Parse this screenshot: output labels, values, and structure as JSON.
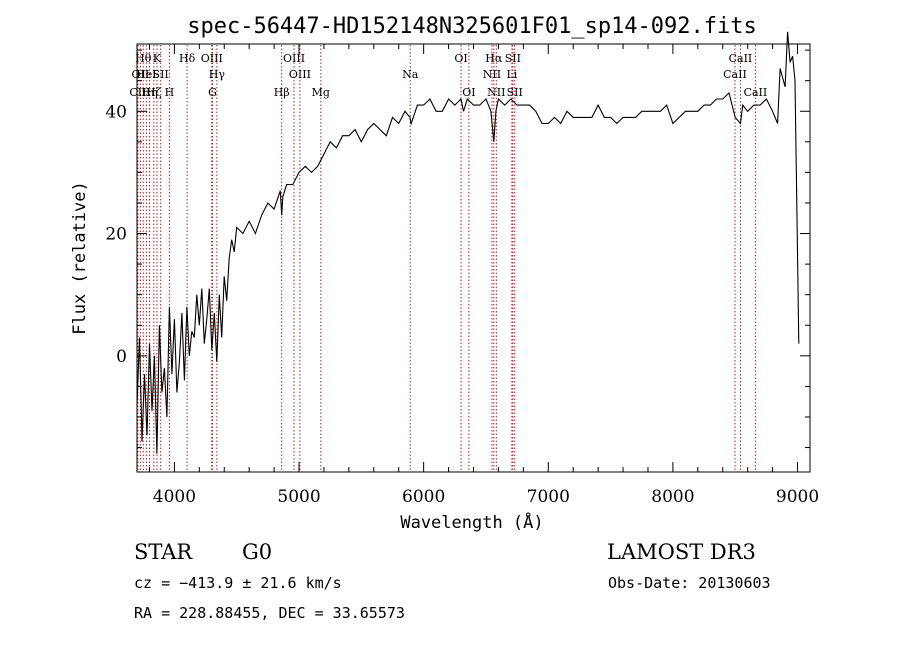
{
  "chart_data": {
    "type": "line",
    "title": "spec-56447-HD152148N325601F01_sp14-092.fits",
    "xlabel": "Wavelength (Å)",
    "ylabel": "Flux (relative)",
    "xlim": [
      3700,
      9100
    ],
    "ylim": [
      -19,
      51
    ],
    "x_ticks": [
      4000,
      5000,
      6000,
      7000,
      8000,
      9000
    ],
    "x_tick_labels": [
      "4000",
      "5000",
      "6000",
      "7000",
      "8000",
      "9000"
    ],
    "y_ticks": [
      0,
      20,
      40
    ],
    "y_tick_labels": [
      "0",
      "20",
      "40"
    ],
    "grid": false,
    "series": [
      {
        "color": "#000000",
        "x": [
          3700,
          3720,
          3740,
          3760,
          3780,
          3800,
          3820,
          3840,
          3860,
          3880,
          3900,
          3920,
          3940,
          3960,
          3980,
          4000,
          4020,
          4040,
          4060,
          4080,
          4100,
          4120,
          4140,
          4160,
          4180,
          4200,
          4220,
          4240,
          4260,
          4280,
          4300,
          4320,
          4340,
          4360,
          4380,
          4400,
          4420,
          4440,
          4460,
          4480,
          4500,
          4550,
          4600,
          4650,
          4700,
          4750,
          4800,
          4850,
          4861,
          4870,
          4900,
          4950,
          5000,
          5050,
          5100,
          5150,
          5200,
          5250,
          5300,
          5350,
          5400,
          5450,
          5500,
          5550,
          5600,
          5650,
          5700,
          5750,
          5800,
          5850,
          5890,
          5900,
          5950,
          6000,
          6050,
          6100,
          6150,
          6200,
          6250,
          6300,
          6320,
          6350,
          6400,
          6450,
          6500,
          6540,
          6563,
          6580,
          6600,
          6650,
          6700,
          6750,
          6800,
          6850,
          6900,
          6950,
          7000,
          7050,
          7100,
          7150,
          7200,
          7250,
          7300,
          7350,
          7400,
          7450,
          7500,
          7550,
          7600,
          7650,
          7700,
          7750,
          7800,
          7850,
          7900,
          7950,
          8000,
          8050,
          8100,
          8150,
          8200,
          8250,
          8300,
          8350,
          8400,
          8450,
          8500,
          8542,
          8560,
          8600,
          8650,
          8700,
          8750,
          8800,
          8840,
          8860,
          8900,
          8920,
          8940,
          8960,
          8980,
          9000,
          9010
        ],
        "values": [
          -8,
          3,
          -14,
          -3,
          -13,
          2,
          -9,
          0,
          -16,
          5,
          -6,
          -2,
          -10,
          8,
          -3,
          6,
          -6,
          -1,
          7,
          -4,
          8,
          0,
          4,
          3,
          10,
          5,
          11,
          2,
          6,
          11,
          1,
          7,
          -1,
          10,
          3,
          13,
          9,
          16,
          19,
          17,
          21,
          20,
          22,
          20,
          23,
          25,
          24,
          27,
          23,
          26,
          28,
          28,
          30,
          31,
          30,
          31,
          33,
          35,
          34,
          36,
          36,
          37,
          35,
          37,
          38,
          37,
          36,
          39,
          38,
          40,
          39,
          38,
          41,
          41,
          42,
          40,
          40,
          42,
          41,
          42,
          40,
          42,
          41,
          41,
          42,
          40,
          35,
          40,
          42,
          41,
          42,
          41,
          41,
          41,
          40,
          38,
          38,
          39,
          38,
          40,
          39,
          39,
          39,
          39,
          41,
          39,
          39,
          38,
          39,
          39,
          39,
          40,
          40,
          40,
          40,
          41,
          38,
          39,
          40,
          40,
          40,
          41,
          41,
          42,
          42,
          43,
          39,
          38,
          41,
          40,
          41,
          41,
          42,
          40,
          38,
          47,
          44,
          53,
          48,
          49,
          45,
          17,
          2
        ]
      }
    ],
    "annotations": [
      {
        "label": "CII",
        "x": 3707,
        "row": 3
      },
      {
        "label": "OII",
        "x": 3727,
        "row": 2
      },
      {
        "label": "Hθ",
        "x": 3750,
        "row": 1
      },
      {
        "label": "HeI",
        "x": 3775,
        "row": 2
      },
      {
        "label": "Hη",
        "x": 3800,
        "row": 3
      },
      {
        "label": "Hζ",
        "x": 3835,
        "row": 3
      },
      {
        "label": "K",
        "x": 3860,
        "row": 1
      },
      {
        "label": "SII",
        "x": 3890,
        "row": 2
      },
      {
        "label": "H",
        "x": 3960,
        "row": 3
      },
      {
        "label": "Hδ",
        "x": 4102,
        "row": 1
      },
      {
        "label": "OIII",
        "x": 4300,
        "row": 1
      },
      {
        "label": "Hγ",
        "x": 4341,
        "row": 2
      },
      {
        "label": "G",
        "x": 4306,
        "row": 3
      },
      {
        "label": "OIII",
        "x": 4960,
        "row": 1
      },
      {
        "label": "OIII",
        "x": 5007,
        "row": 2
      },
      {
        "label": "Hβ",
        "x": 4861,
        "row": 3
      },
      {
        "label": "Mg",
        "x": 5175,
        "row": 3
      },
      {
        "label": "Na",
        "x": 5892,
        "row": 2
      },
      {
        "label": "OI",
        "x": 6300,
        "row": 1
      },
      {
        "label": "OI",
        "x": 6363,
        "row": 3
      },
      {
        "label": "Hα",
        "x": 6563,
        "row": 1
      },
      {
        "label": "NII",
        "x": 6548,
        "row": 2
      },
      {
        "label": "NII",
        "x": 6583,
        "row": 3
      },
      {
        "label": "SII",
        "x": 6716,
        "row": 1
      },
      {
        "label": "Li",
        "x": 6708,
        "row": 2
      },
      {
        "label": "SII",
        "x": 6731,
        "row": 3
      },
      {
        "label": "CaII",
        "x": 8542,
        "row": 1
      },
      {
        "label": "CaII",
        "x": 8498,
        "row": 2
      },
      {
        "label": "CaII",
        "x": 8662,
        "row": 3
      }
    ]
  },
  "info": {
    "object_class": "STAR",
    "subclass": "G0",
    "survey": "LAMOST DR3",
    "redshift": "cz = −413.9 ± 21.6 km/s",
    "obs_date": "Obs-Date: 20130603",
    "coords": "RA = 228.88455, DEC =  33.65573"
  },
  "colors": {
    "line_marker": "#b22222",
    "spectrum": "#000000"
  }
}
